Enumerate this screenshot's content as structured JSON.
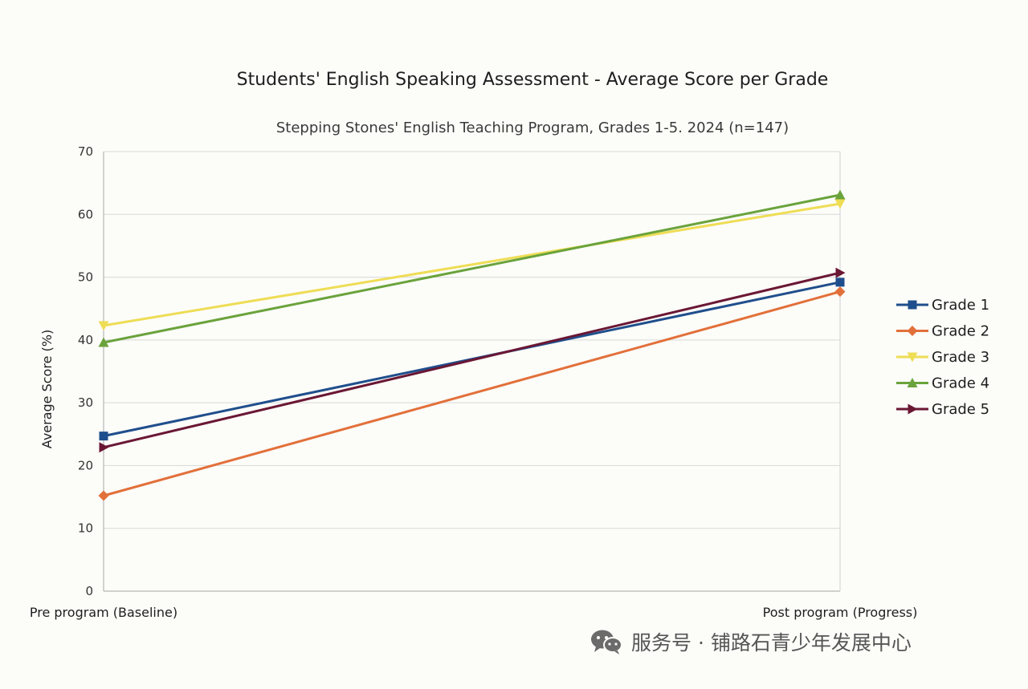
{
  "chart_data": {
    "type": "line",
    "title": "Students' English Speaking Assessment - Average Score per Grade",
    "subtitle": "Stepping Stones' English Teaching Program, Grades 1-5. 2024 (n=147)",
    "xlabel": "",
    "ylabel": "Average Score (%)",
    "categories": [
      "Pre program (Baseline)",
      "Post program (Progress)"
    ],
    "ylim": [
      0,
      70
    ],
    "yticks": [
      0,
      10,
      20,
      30,
      40,
      50,
      60,
      70
    ],
    "grid": true,
    "legend_position": "right",
    "series": [
      {
        "name": "Grade 1",
        "values": [
          24.7,
          49.2
        ],
        "color": "#1f4e8c",
        "marker": "square"
      },
      {
        "name": "Grade 2",
        "values": [
          15.2,
          47.7
        ],
        "color": "#e2703a",
        "marker": "diamond"
      },
      {
        "name": "Grade 3",
        "values": [
          42.3,
          61.7
        ],
        "color": "#eedd55",
        "marker": "triangle-down"
      },
      {
        "name": "Grade 4",
        "values": [
          39.6,
          63.1
        ],
        "color": "#6aa33c",
        "marker": "triangle-up"
      },
      {
        "name": "Grade 5",
        "values": [
          22.9,
          50.7
        ],
        "color": "#6a1734",
        "marker": "triangle-right"
      }
    ]
  },
  "watermark": {
    "text": "服务号 · 铺路石青少年发展中心",
    "icon": "wechat-icon"
  }
}
